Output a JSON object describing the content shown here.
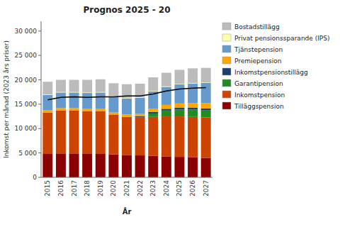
{
  "chart_data": {
    "type": "bar",
    "stacked": true,
    "title": "Prognos 2025 - 20",
    "xlabel": "År",
    "ylabel": "Inkomst per månad (2023 års priser)",
    "categories": [
      "2015",
      "2016",
      "2017",
      "2018",
      "2019",
      "2020",
      "2021",
      "2022",
      "2023",
      "2024",
      "2025",
      "2026",
      "2027"
    ],
    "ylim": [
      0,
      32000
    ],
    "yticks": [
      0,
      {
        "value": 5000,
        "label": "5 000"
      },
      {
        "value": 10000,
        "label": "10 000"
      },
      {
        "value": 15000,
        "label": "15 000"
      },
      {
        "value": 20000,
        "label": "20 000"
      },
      {
        "value": 25000,
        "label": "25 000"
      },
      {
        "value": 30000,
        "label": "30 000"
      }
    ],
    "grid": false,
    "legend": "right",
    "series": [
      {
        "name": "Tilläggspension",
        "color": "#8B0000",
        "values": [
          4800,
          4900,
          4900,
          4900,
          4800,
          4700,
          4600,
          4500,
          4400,
          4300,
          4200,
          4100,
          4000
        ]
      },
      {
        "name": "Inkomstpension",
        "color": "#CC4400",
        "values": [
          8500,
          8800,
          8800,
          8700,
          8800,
          8100,
          7800,
          7800,
          8000,
          8200,
          8300,
          8300,
          8300
        ]
      },
      {
        "name": "Garantipension",
        "color": "#228B22",
        "values": [
          0,
          0,
          0,
          0,
          0,
          0,
          0,
          0,
          700,
          1200,
          1400,
          1500,
          1500
        ]
      },
      {
        "name": "Inkomstpensionstillägg",
        "color": "#1C3F6E",
        "values": [
          0,
          0,
          0,
          0,
          0,
          0,
          0,
          200,
          300,
          350,
          350,
          350,
          350
        ]
      },
      {
        "name": "Premiepension",
        "color": "#FFA500",
        "values": [
          500,
          500,
          500,
          500,
          500,
          500,
          500,
          500,
          700,
          800,
          900,
          1000,
          1100
        ]
      },
      {
        "name": "Tjänstepension",
        "color": "#6699CC",
        "values": [
          3100,
          3200,
          3200,
          3200,
          3300,
          3300,
          3300,
          3300,
          3500,
          3700,
          3900,
          4000,
          4100
        ]
      },
      {
        "name": "Privat pensionssparande (IPS)",
        "color": "#FFFFAA",
        "values": [
          100,
          100,
          100,
          100,
          100,
          100,
          100,
          100,
          100,
          100,
          100,
          100,
          100
        ]
      },
      {
        "name": "Bostadstillägg",
        "color": "#BBBBBB",
        "values": [
          2600,
          2500,
          2500,
          2600,
          2600,
          2600,
          2800,
          2800,
          2800,
          2800,
          2900,
          3000,
          3000
        ]
      },
      {
        "type": "line",
        "color": "#000000",
        "values": [
          15900,
          16400,
          16500,
          16400,
          16500,
          16500,
          16700,
          16700,
          17100,
          17700,
          18100,
          18300,
          18400
        ]
      }
    ]
  }
}
